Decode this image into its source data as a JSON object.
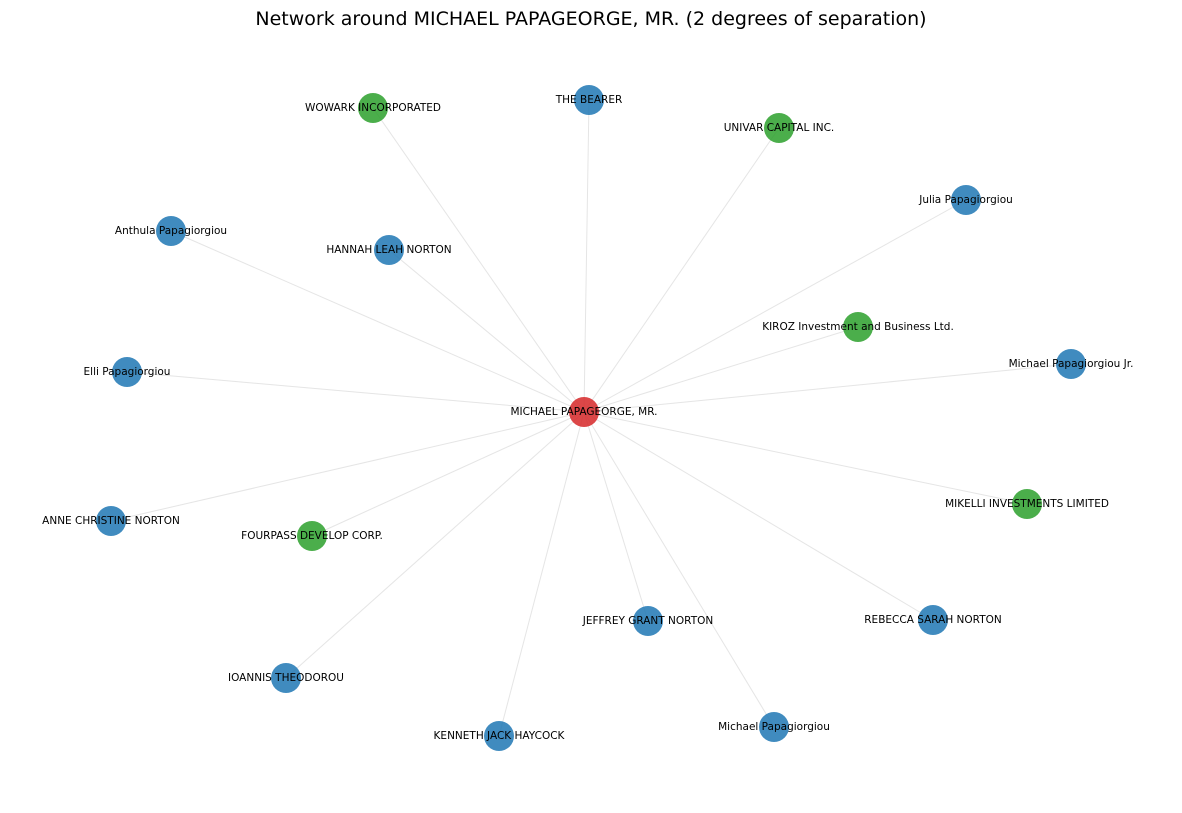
{
  "title": "Network around MICHAEL PAPAGEORGE, MR. (2 degrees of separation)",
  "legend": {
    "center_color": "#d62728",
    "person_color": "#1f77b4",
    "company_color": "#2ca02c"
  },
  "center": "n0",
  "nodes": [
    {
      "id": "n0",
      "label": "MICHAEL PAPAGEORGE, MR.",
      "kind": "center"
    },
    {
      "id": "n1",
      "label": "WOWARK INCORPORATED",
      "kind": "company"
    },
    {
      "id": "n2",
      "label": "THE BEARER",
      "kind": "person"
    },
    {
      "id": "n3",
      "label": "UNIVAR CAPITAL INC.",
      "kind": "company"
    },
    {
      "id": "n4",
      "label": "Julia Papagiorgiou",
      "kind": "person"
    },
    {
      "id": "n5",
      "label": "Anthula Papagiorgiou",
      "kind": "person"
    },
    {
      "id": "n6",
      "label": "HANNAH LEAH NORTON",
      "kind": "person"
    },
    {
      "id": "n7",
      "label": "KIROZ Investment and Business Ltd.",
      "kind": "company"
    },
    {
      "id": "n8",
      "label": "Michael Papagiorgiou Jr.",
      "kind": "person"
    },
    {
      "id": "n9",
      "label": "Elli Papagiorgiou",
      "kind": "person"
    },
    {
      "id": "n10",
      "label": "MIKELLI INVESTMENTS LIMITED",
      "kind": "company"
    },
    {
      "id": "n11",
      "label": "ANNE CHRISTINE NORTON",
      "kind": "person"
    },
    {
      "id": "n12",
      "label": "FOURPASS DEVELOP CORP.",
      "kind": "company"
    },
    {
      "id": "n13",
      "label": "JEFFREY GRANT NORTON",
      "kind": "person"
    },
    {
      "id": "n14",
      "label": "REBECCA SARAH NORTON",
      "kind": "person"
    },
    {
      "id": "n15",
      "label": "IOANNIS THEODOROU",
      "kind": "person"
    },
    {
      "id": "n16",
      "label": "KENNETH JACK HAYCOCK",
      "kind": "person"
    },
    {
      "id": "n17",
      "label": "Michael Papagiorgiou",
      "kind": "person"
    }
  ],
  "edges": [
    [
      "n0",
      "n1"
    ],
    [
      "n0",
      "n2"
    ],
    [
      "n0",
      "n3"
    ],
    [
      "n0",
      "n4"
    ],
    [
      "n0",
      "n5"
    ],
    [
      "n0",
      "n6"
    ],
    [
      "n0",
      "n7"
    ],
    [
      "n0",
      "n8"
    ],
    [
      "n0",
      "n9"
    ],
    [
      "n0",
      "n10"
    ],
    [
      "n0",
      "n11"
    ],
    [
      "n0",
      "n12"
    ],
    [
      "n0",
      "n13"
    ],
    [
      "n0",
      "n14"
    ],
    [
      "n0",
      "n15"
    ],
    [
      "n0",
      "n16"
    ],
    [
      "n0",
      "n17"
    ]
  ]
}
